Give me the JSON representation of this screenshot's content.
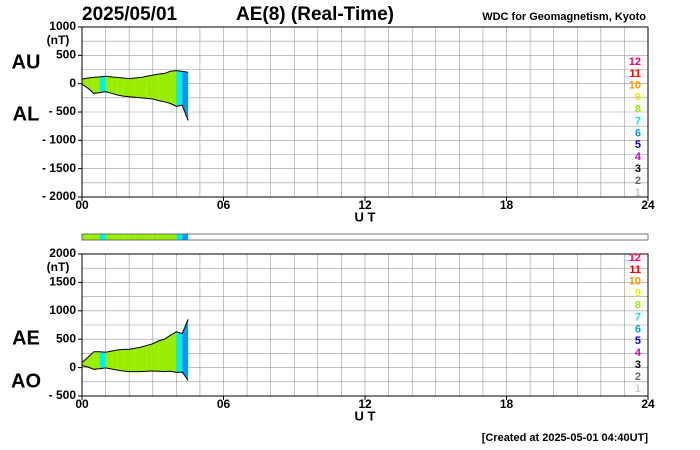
{
  "title": "2025/05/01",
  "subtitle": "AE(8)  (Real-Time)",
  "source": "WDC for Geomagnetism, Kyoto",
  "footer": "[Created at 2025-05-01 04:40UT]",
  "station_legend": {
    "counts": [
      12,
      11,
      10,
      9,
      8,
      7,
      6,
      5,
      4,
      3,
      2,
      1
    ],
    "colors": [
      "#ff0066",
      "#ee0000",
      "#ff9900",
      "#eeee00",
      "#99ee00",
      "#00eeee",
      "#0099ff",
      "#0000cc",
      "#cc00cc",
      "#000000",
      "#666666",
      "#cccccc"
    ]
  },
  "chart_data": [
    {
      "type": "area",
      "ylabel": "(nT)",
      "xlabel": "U T",
      "x": [
        0,
        0.25,
        0.5,
        0.75,
        1,
        1.25,
        1.5,
        1.75,
        2,
        2.25,
        2.5,
        2.75,
        3,
        3.25,
        3.5,
        3.75,
        4,
        4.25,
        4.5
      ],
      "stations": [
        8,
        8,
        8,
        7,
        8,
        8,
        8,
        8,
        8,
        8,
        8,
        8,
        8,
        8,
        8,
        8,
        7,
        6,
        5
      ],
      "series": [
        {
          "name": "AU",
          "color": "#000000",
          "values": [
            80,
            100,
            110,
            120,
            130,
            120,
            110,
            100,
            90,
            100,
            110,
            130,
            150,
            170,
            180,
            220,
            230,
            220,
            200
          ]
        },
        {
          "name": "AL",
          "color": "#000000",
          "values": [
            -10,
            -80,
            -170,
            -160,
            -140,
            -170,
            -200,
            -220,
            -230,
            -240,
            -250,
            -260,
            -270,
            -300,
            -320,
            -350,
            -400,
            -380,
            -650
          ]
        }
      ],
      "xlim": [
        0,
        24
      ],
      "xticks": [
        {
          "value": 0,
          "label": "00"
        },
        {
          "value": 6,
          "label": "06"
        },
        12,
        18,
        24
      ],
      "ylim": [
        -2000,
        1000
      ],
      "yticks": [
        1000,
        500,
        0,
        {
          "value": -500,
          "label": "- 500"
        },
        {
          "value": -1000,
          "label": "- 1000"
        },
        {
          "value": -1500,
          "label": "- 1500"
        },
        {
          "value": -2000,
          "label": "- 2000"
        }
      ],
      "grid": true,
      "xgrid_step": 1,
      "ygrid_step": 250
    },
    {
      "type": "area",
      "ylabel": "(nT)",
      "xlabel": "U T",
      "x": [
        0,
        0.25,
        0.5,
        0.75,
        1,
        1.25,
        1.5,
        1.75,
        2,
        2.25,
        2.5,
        2.75,
        3,
        3.25,
        3.5,
        3.75,
        4,
        4.25,
        4.5
      ],
      "stations": [
        8,
        8,
        8,
        7,
        8,
        8,
        8,
        8,
        8,
        8,
        8,
        8,
        8,
        8,
        8,
        8,
        7,
        6,
        5
      ],
      "series": [
        {
          "name": "AE",
          "color": "#000000",
          "values": [
            90,
            180,
            280,
            280,
            270,
            290,
            310,
            320,
            320,
            340,
            360,
            390,
            420,
            470,
            500,
            570,
            630,
            600,
            850
          ]
        },
        {
          "name": "AO",
          "color": "#000000",
          "values": [
            35,
            10,
            -30,
            -20,
            -5,
            -25,
            -45,
            -60,
            -70,
            -70,
            -70,
            -65,
            -60,
            -65,
            -70,
            -65,
            -85,
            -80,
            -225
          ]
        }
      ],
      "xlim": [
        0,
        24
      ],
      "xticks": [
        {
          "value": 0,
          "label": "00"
        },
        {
          "value": 6,
          "label": "06"
        },
        12,
        18,
        24
      ],
      "ylim": [
        -500,
        2000
      ],
      "yticks": [
        2000,
        1500,
        1000,
        500,
        0,
        {
          "value": -500,
          "label": "- 500"
        }
      ],
      "grid": true,
      "xgrid_step": 1,
      "ygrid_step": 250
    }
  ]
}
